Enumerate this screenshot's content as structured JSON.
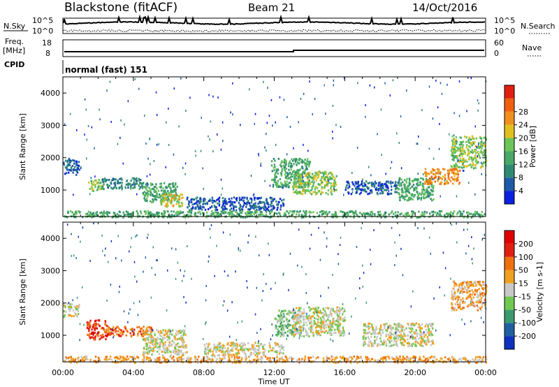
{
  "header": {
    "station": "Blackstone (fitACF)",
    "beam": "Beam 21",
    "date": "14/Oct/2016"
  },
  "top_panels": {
    "nsky_label": "N.Sky",
    "nsearch_label": "N.Search",
    "count_ticks": [
      "10^5",
      "10^0"
    ],
    "freq_label": "Freq.",
    "freq_unit": "[MHz]",
    "freq_ticks": [
      "18",
      "8"
    ],
    "nave_label": "Nave",
    "nave_ticks": [
      "60",
      "0"
    ],
    "cpid_label": "CPID",
    "cpid_value": "normal (fast) 151"
  },
  "chart_data": [
    {
      "type": "heatmap",
      "title": "",
      "xlabel": "Time UT",
      "ylabel": "Slant Range [km]",
      "xlim_hours": [
        0,
        24
      ],
      "ylim_km": [
        180,
        4500
      ],
      "x_ticks": [
        "00:00",
        "04:00",
        "08:00",
        "12:00",
        "16:00",
        "20:00",
        "00:00"
      ],
      "y_ticks": [
        1000,
        2000,
        3000,
        4000
      ],
      "colorbar": {
        "label": "Power [dB]",
        "ticks": [
          "4",
          "8",
          "12",
          "16",
          "20",
          "24",
          "28"
        ],
        "colors": [
          "#0b1fe0",
          "#1f5ba8",
          "#2f8a72",
          "#48a868",
          "#6cc45a",
          "#e0c020",
          "#f09020",
          "#f06010",
          "#e02010"
        ]
      },
      "patches": [
        {
          "t": [
            0.0,
            0.9
          ],
          "r": [
            1500,
            2000
          ],
          "level": 1
        },
        {
          "t": [
            1.4,
            2.2
          ],
          "r": [
            1000,
            1350
          ],
          "level": 4
        },
        {
          "t": [
            2.2,
            4.5
          ],
          "r": [
            1050,
            1400
          ],
          "level": 2
        },
        {
          "t": [
            4.5,
            6.5
          ],
          "r": [
            650,
            1250
          ],
          "level": 3
        },
        {
          "t": [
            5.5,
            6.8
          ],
          "r": [
            500,
            900
          ],
          "level": 5
        },
        {
          "t": [
            7.0,
            12.5
          ],
          "r": [
            400,
            800
          ],
          "level": 1
        },
        {
          "t": [
            11.8,
            14.0
          ],
          "r": [
            1100,
            2000
          ],
          "level": 3
        },
        {
          "t": [
            13.0,
            15.5
          ],
          "r": [
            900,
            1600
          ],
          "level": 4
        },
        {
          "t": [
            16.0,
            19.0
          ],
          "r": [
            900,
            1300
          ],
          "level": 1
        },
        {
          "t": [
            19.0,
            21.0
          ],
          "r": [
            700,
            1400
          ],
          "level": 3
        },
        {
          "t": [
            20.5,
            22.5
          ],
          "r": [
            1200,
            1700
          ],
          "level": 6
        },
        {
          "t": [
            22.0,
            24.0
          ],
          "r": [
            1700,
            2700
          ],
          "level": 4
        },
        {
          "t": [
            0.0,
            24.0
          ],
          "r": [
            180,
            380
          ],
          "level": 3
        }
      ]
    },
    {
      "type": "heatmap",
      "title": "",
      "xlabel": "Time UT",
      "ylabel": "Slant Range [km]",
      "xlim_hours": [
        0,
        24
      ],
      "ylim_km": [
        180,
        4500
      ],
      "x_ticks": [
        "00:00",
        "04:00",
        "08:00",
        "12:00",
        "16:00",
        "20:00",
        "00:00"
      ],
      "y_ticks": [
        1000,
        2000,
        3000,
        4000
      ],
      "colorbar": {
        "label": "Velocity [m s-1]",
        "ticks": [
          "200",
          "100",
          "50",
          "15",
          "-15",
          "-50",
          "-100",
          "-200"
        ],
        "colors": [
          "#1030c0",
          "#2060a0",
          "#3a9a70",
          "#70c850",
          "#c8c8c8",
          "#f0a020",
          "#f07010",
          "#e02010",
          "#e00000"
        ]
      },
      "patches": [
        {
          "t": [
            0.0,
            0.9
          ],
          "r": [
            1600,
            2000
          ],
          "level": 4
        },
        {
          "t": [
            1.3,
            2.5
          ],
          "r": [
            900,
            1500
          ],
          "level": 7
        },
        {
          "t": [
            2.5,
            5.0
          ],
          "r": [
            1000,
            1300
          ],
          "level": 6
        },
        {
          "t": [
            4.5,
            7.0
          ],
          "r": [
            400,
            1200
          ],
          "level": 4
        },
        {
          "t": [
            8.0,
            12.5
          ],
          "r": [
            400,
            800
          ],
          "level": 4
        },
        {
          "t": [
            12.0,
            13.5
          ],
          "r": [
            1000,
            1800
          ],
          "level": 3
        },
        {
          "t": [
            13.0,
            16.0
          ],
          "r": [
            1000,
            1900
          ],
          "level": 4
        },
        {
          "t": [
            17.0,
            21.0
          ],
          "r": [
            700,
            1400
          ],
          "level": 4
        },
        {
          "t": [
            22.0,
            24.0
          ],
          "r": [
            1800,
            2700
          ],
          "level": 5
        },
        {
          "t": [
            0.0,
            24.0
          ],
          "r": [
            180,
            380
          ],
          "level": 5
        }
      ]
    }
  ]
}
